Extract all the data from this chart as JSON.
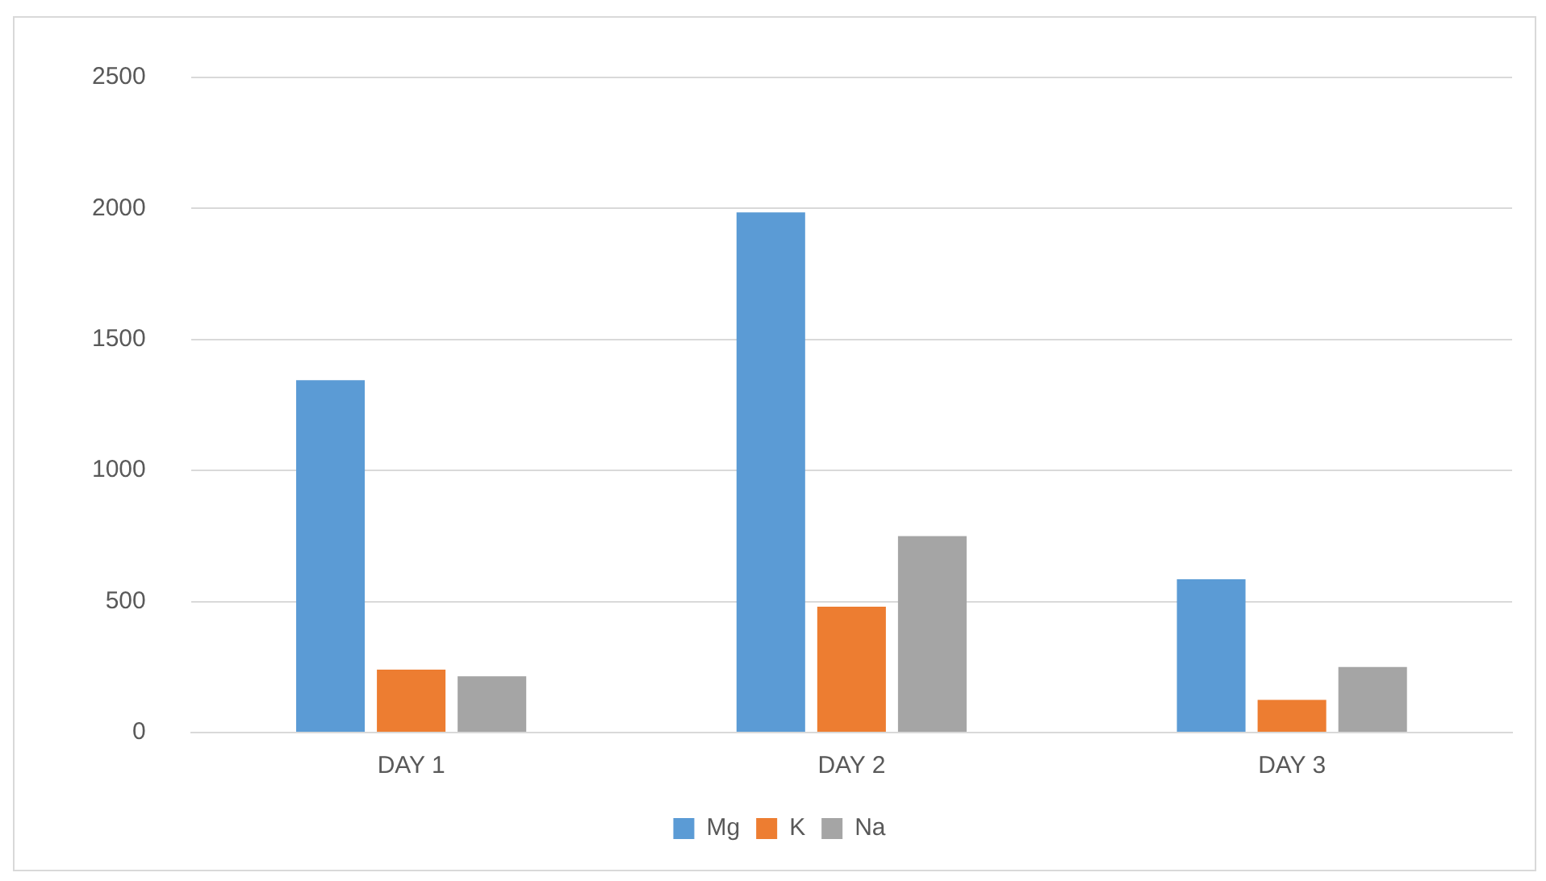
{
  "chart_data": {
    "type": "bar",
    "categories": [
      "DAY 1",
      "DAY 2",
      "DAY 3"
    ],
    "series": [
      {
        "name": "Mg",
        "color": "#5b9bd5",
        "values": [
          1345,
          1985,
          585
        ]
      },
      {
        "name": "K",
        "color": "#ed7d31",
        "values": [
          240,
          480,
          125
        ]
      },
      {
        "name": "Na",
        "color": "#a5a5a5",
        "values": [
          215,
          750,
          250
        ]
      }
    ],
    "ylim": [
      0,
      2500
    ],
    "yticks": [
      0,
      500,
      1000,
      1500,
      2000,
      2500
    ],
    "grid": "y",
    "legend": "bottom"
  }
}
